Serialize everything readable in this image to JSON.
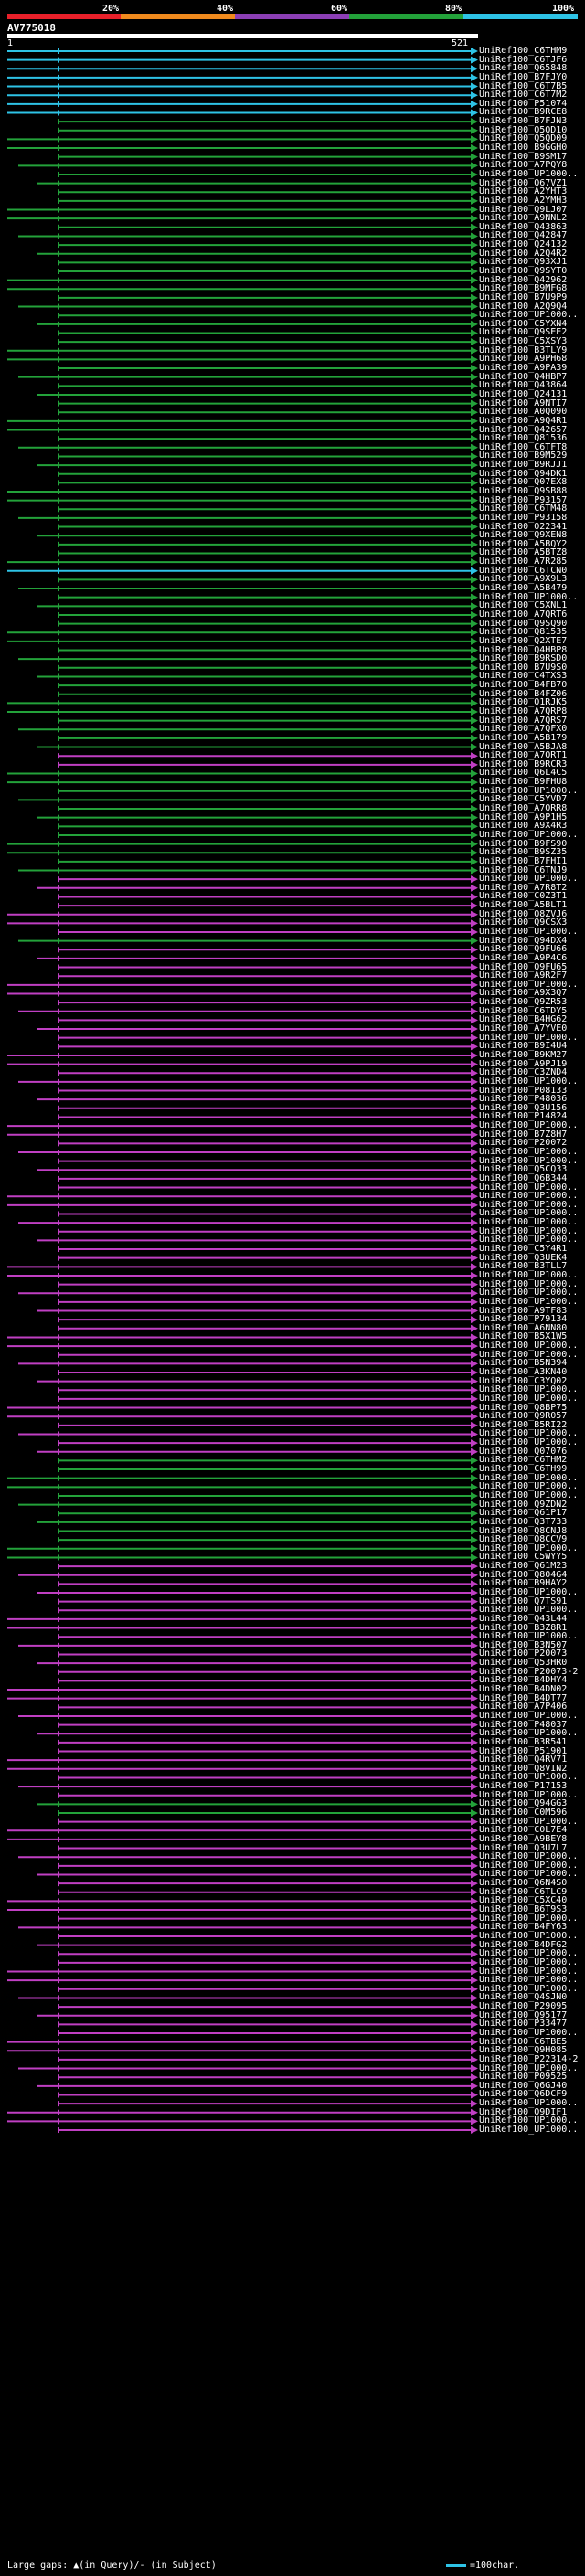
{
  "scale": {
    "ticks": [
      "20%",
      "40%",
      "60%",
      "80%",
      "100%"
    ],
    "colors": [
      "#e8202a",
      "#f08a1d",
      "#8c3fb5",
      "#23a23a",
      "#2ec3e6"
    ]
  },
  "query": {
    "name": "AV775018",
    "start": "1",
    "end": "521"
  },
  "legend": {
    "gaps": "Large gaps: ▲(in Query)/- (in Subject)",
    "scale": "=100char."
  },
  "colors": {
    "cyan": "#2ec3e6",
    "green": "#23a23a",
    "magenta": "#c03fc3"
  },
  "hits": [
    {
      "label": "UniRef100_C6THM9",
      "color": "cyan"
    },
    {
      "label": "UniRef100_C6TJF6",
      "color": "cyan"
    },
    {
      "label": "UniRef100_Q65848",
      "color": "cyan"
    },
    {
      "label": "UniRef100_B7FJY0",
      "color": "cyan"
    },
    {
      "label": "UniRef100_C6T7B5",
      "color": "cyan"
    },
    {
      "label": "UniRef100_C6T7M2",
      "color": "cyan"
    },
    {
      "label": "UniRef100_P51074",
      "color": "cyan"
    },
    {
      "label": "UniRef100_B9RCE8",
      "color": "cyan"
    },
    {
      "label": "UniRef100_B7FJN3",
      "color": "green"
    },
    {
      "label": "UniRef100_Q5QD10",
      "color": "green"
    },
    {
      "label": "UniRef100_Q5QD09",
      "color": "green"
    },
    {
      "label": "UniRef100_B9GGH0",
      "color": "green"
    },
    {
      "label": "UniRef100_B9SM17",
      "color": "green"
    },
    {
      "label": "UniRef100_A7PQY8",
      "color": "green"
    },
    {
      "label": "UniRef100_UP1000..",
      "color": "green"
    },
    {
      "label": "UniRef100_Q67VZ1",
      "color": "green"
    },
    {
      "label": "UniRef100_A2YHT3",
      "color": "green"
    },
    {
      "label": "UniRef100_A2YMH3",
      "color": "green"
    },
    {
      "label": "UniRef100_Q9LJ07",
      "color": "green"
    },
    {
      "label": "UniRef100_A9NNL2",
      "color": "green"
    },
    {
      "label": "UniRef100_Q43863",
      "color": "green"
    },
    {
      "label": "UniRef100_Q42847",
      "color": "green"
    },
    {
      "label": "UniRef100_Q24132",
      "color": "green"
    },
    {
      "label": "UniRef100_A2Q4R2",
      "color": "green"
    },
    {
      "label": "UniRef100_Q93XJ1",
      "color": "green"
    },
    {
      "label": "UniRef100_Q9SYT0",
      "color": "green"
    },
    {
      "label": "UniRef100_Q42962",
      "color": "green"
    },
    {
      "label": "UniRef100_B9MFG8",
      "color": "green"
    },
    {
      "label": "UniRef100_B7U9P9",
      "color": "green"
    },
    {
      "label": "UniRef100_A2Q9Q4",
      "color": "green"
    },
    {
      "label": "UniRef100_UP1000..",
      "color": "green"
    },
    {
      "label": "UniRef100_C5YXN4",
      "color": "green"
    },
    {
      "label": "UniRef100_Q9SEE2",
      "color": "green"
    },
    {
      "label": "UniRef100_C5XSY3",
      "color": "green"
    },
    {
      "label": "UniRef100_B3TLY9",
      "color": "green"
    },
    {
      "label": "UniRef100_A9PH68",
      "color": "green"
    },
    {
      "label": "UniRef100_A9PA39",
      "color": "green"
    },
    {
      "label": "UniRef100_Q4HBP7",
      "color": "green"
    },
    {
      "label": "UniRef100_Q43864",
      "color": "green"
    },
    {
      "label": "UniRef100_Q24131",
      "color": "green"
    },
    {
      "label": "UniRef100_A9NTI7",
      "color": "green"
    },
    {
      "label": "UniRef100_A0Q090",
      "color": "green"
    },
    {
      "label": "UniRef100_A9Q4R1",
      "color": "green"
    },
    {
      "label": "UniRef100_Q42657",
      "color": "green"
    },
    {
      "label": "UniRef100_Q81536",
      "color": "green"
    },
    {
      "label": "UniRef100_C6TFT8",
      "color": "green"
    },
    {
      "label": "UniRef100_B9M529",
      "color": "green"
    },
    {
      "label": "UniRef100_B9RJJ1",
      "color": "green"
    },
    {
      "label": "UniRef100_Q94DK1",
      "color": "green"
    },
    {
      "label": "UniRef100_Q07EX8",
      "color": "green"
    },
    {
      "label": "UniRef100_Q9SB88",
      "color": "green"
    },
    {
      "label": "UniRef100_P93157",
      "color": "green"
    },
    {
      "label": "UniRef100_C6TM48",
      "color": "green"
    },
    {
      "label": "UniRef100_P93158",
      "color": "green"
    },
    {
      "label": "UniRef100_O22341",
      "color": "green"
    },
    {
      "label": "UniRef100_Q9XEN8",
      "color": "green"
    },
    {
      "label": "UniRef100_A5BQY2",
      "color": "green"
    },
    {
      "label": "UniRef100_A5BTZ8",
      "color": "green"
    },
    {
      "label": "UniRef100_A7R285",
      "color": "green"
    },
    {
      "label": "UniRef100_C6TCN0",
      "color": "cyan"
    },
    {
      "label": "UniRef100_A9X9L3",
      "color": "green"
    },
    {
      "label": "UniRef100_A5B479",
      "color": "green"
    },
    {
      "label": "UniRef100_UP1000..",
      "color": "green"
    },
    {
      "label": "UniRef100_C5XNL1",
      "color": "green"
    },
    {
      "label": "UniRef100_A7QRT6",
      "color": "green"
    },
    {
      "label": "UniRef100_Q9SQ90",
      "color": "green"
    },
    {
      "label": "UniRef100_Q81535",
      "color": "green"
    },
    {
      "label": "UniRef100_Q2XTE7",
      "color": "green"
    },
    {
      "label": "UniRef100_Q4HBP8",
      "color": "green"
    },
    {
      "label": "UniRef100_B9RSD0",
      "color": "green"
    },
    {
      "label": "UniRef100_B7U9S0",
      "color": "green"
    },
    {
      "label": "UniRef100_C4TXS3",
      "color": "green"
    },
    {
      "label": "UniRef100_B4FB70",
      "color": "green"
    },
    {
      "label": "UniRef100_B4FZ06",
      "color": "green"
    },
    {
      "label": "UniRef100_Q1RJK5",
      "color": "green"
    },
    {
      "label": "UniRef100_A7QRP8",
      "color": "green"
    },
    {
      "label": "UniRef100_A7QRS7",
      "color": "green"
    },
    {
      "label": "UniRef100_A7QFX0",
      "color": "green"
    },
    {
      "label": "UniRef100_A5B179",
      "color": "green"
    },
    {
      "label": "UniRef100_A5BJA8",
      "color": "green"
    },
    {
      "label": "UniRef100_A7QRT1",
      "color": "magenta"
    },
    {
      "label": "UniRef100_B9RCR3",
      "color": "magenta"
    },
    {
      "label": "UniRef100_Q6L4C5",
      "color": "green"
    },
    {
      "label": "UniRef100_B9FHU8",
      "color": "green"
    },
    {
      "label": "UniRef100_UP1000..",
      "color": "green"
    },
    {
      "label": "UniRef100_C5YVD7",
      "color": "green"
    },
    {
      "label": "UniRef100_A7QRR8",
      "color": "green"
    },
    {
      "label": "UniRef100_A9P1H5",
      "color": "green"
    },
    {
      "label": "UniRef100_A9X4R3",
      "color": "green"
    },
    {
      "label": "UniRef100_UP1000..",
      "color": "green"
    },
    {
      "label": "UniRef100_B9FS90",
      "color": "green"
    },
    {
      "label": "UniRef100_B9SZ35",
      "color": "green"
    },
    {
      "label": "UniRef100_B7FHI1",
      "color": "green"
    },
    {
      "label": "UniRef100_C6TNJ9",
      "color": "green"
    },
    {
      "label": "UniRef100_UP1000..",
      "color": "magenta"
    },
    {
      "label": "UniRef100_A7R8T2",
      "color": "magenta"
    },
    {
      "label": "UniRef100_C0Z3T1",
      "color": "magenta"
    },
    {
      "label": "UniRef100_A5BLT1",
      "color": "magenta"
    },
    {
      "label": "UniRef100_Q8ZVJ6",
      "color": "magenta"
    },
    {
      "label": "UniRef100_Q9CSX3",
      "color": "magenta"
    },
    {
      "label": "UniRef100_UP1000..",
      "color": "magenta"
    },
    {
      "label": "UniRef100_Q94DX4",
      "color": "green"
    },
    {
      "label": "UniRef100_Q9FU66",
      "color": "magenta"
    },
    {
      "label": "UniRef100_A9P4C6",
      "color": "magenta"
    },
    {
      "label": "UniRef100_Q9FU65",
      "color": "magenta"
    },
    {
      "label": "UniRef100_A9R2F7",
      "color": "magenta"
    },
    {
      "label": "UniRef100_UP1000..",
      "color": "magenta"
    },
    {
      "label": "UniRef100_A9X3Q7",
      "color": "magenta"
    },
    {
      "label": "UniRef100_Q9ZR53",
      "color": "magenta"
    },
    {
      "label": "UniRef100_C6TDY5",
      "color": "magenta"
    },
    {
      "label": "UniRef100_B4HG62",
      "color": "magenta"
    },
    {
      "label": "UniRef100_A7YVE0",
      "color": "magenta"
    },
    {
      "label": "UniRef100_UP1000..",
      "color": "magenta"
    },
    {
      "label": "UniRef100_B9I4U4",
      "color": "magenta"
    },
    {
      "label": "UniRef100_B9KM27",
      "color": "magenta"
    },
    {
      "label": "UniRef100_A9PJ19",
      "color": "magenta"
    },
    {
      "label": "UniRef100_C3ZND4",
      "color": "magenta"
    },
    {
      "label": "UniRef100_UP1000..",
      "color": "magenta"
    },
    {
      "label": "UniRef100_P08133",
      "color": "magenta"
    },
    {
      "label": "UniRef100_P48036",
      "color": "magenta"
    },
    {
      "label": "UniRef100_Q3U156",
      "color": "magenta"
    },
    {
      "label": "UniRef100_P14824",
      "color": "magenta"
    },
    {
      "label": "UniRef100_UP1000..",
      "color": "magenta"
    },
    {
      "label": "UniRef100_B7Z8H7",
      "color": "magenta"
    },
    {
      "label": "UniRef100_P20072",
      "color": "magenta"
    },
    {
      "label": "UniRef100_UP1000..",
      "color": "magenta"
    },
    {
      "label": "UniRef100_UP1000..",
      "color": "magenta"
    },
    {
      "label": "UniRef100_Q5CQ33",
      "color": "magenta"
    },
    {
      "label": "UniRef100_Q6B344",
      "color": "magenta"
    },
    {
      "label": "UniRef100_UP1000..",
      "color": "magenta"
    },
    {
      "label": "UniRef100_UP1000..",
      "color": "magenta"
    },
    {
      "label": "UniRef100_UP1000..",
      "color": "magenta"
    },
    {
      "label": "UniRef100_UP1000..",
      "color": "magenta"
    },
    {
      "label": "UniRef100_UP1000..",
      "color": "magenta"
    },
    {
      "label": "UniRef100_UP1000..",
      "color": "magenta"
    },
    {
      "label": "UniRef100_UP1000..",
      "color": "magenta"
    },
    {
      "label": "UniRef100_C5Y4R1",
      "color": "magenta"
    },
    {
      "label": "UniRef100_Q3UEK4",
      "color": "magenta"
    },
    {
      "label": "UniRef100_B3TLL7",
      "color": "magenta"
    },
    {
      "label": "UniRef100_UP1000..",
      "color": "magenta"
    },
    {
      "label": "UniRef100_UP1000..",
      "color": "magenta"
    },
    {
      "label": "UniRef100_UP1000..",
      "color": "magenta"
    },
    {
      "label": "UniRef100_UP1000..",
      "color": "magenta"
    },
    {
      "label": "UniRef100_A9TF83",
      "color": "magenta"
    },
    {
      "label": "UniRef100_P79134",
      "color": "magenta"
    },
    {
      "label": "UniRef100_A6NN80",
      "color": "magenta"
    },
    {
      "label": "UniRef100_B5X1W5",
      "color": "magenta"
    },
    {
      "label": "UniRef100_UP1000..",
      "color": "magenta"
    },
    {
      "label": "UniRef100_UP1000..",
      "color": "magenta"
    },
    {
      "label": "UniRef100_B5N394",
      "color": "magenta"
    },
    {
      "label": "UniRef100_A3KN40",
      "color": "magenta"
    },
    {
      "label": "UniRef100_C3YQ02",
      "color": "magenta"
    },
    {
      "label": "UniRef100_UP1000..",
      "color": "magenta"
    },
    {
      "label": "UniRef100_UP1000..",
      "color": "magenta"
    },
    {
      "label": "UniRef100_Q8BP75",
      "color": "magenta"
    },
    {
      "label": "UniRef100_Q9R057",
      "color": "magenta"
    },
    {
      "label": "UniRef100_B5RI22",
      "color": "magenta"
    },
    {
      "label": "UniRef100_UP1000..",
      "color": "magenta"
    },
    {
      "label": "UniRef100_UP1000..",
      "color": "magenta"
    },
    {
      "label": "UniRef100_Q07076",
      "color": "magenta"
    },
    {
      "label": "UniRef100_C6THM2",
      "color": "green"
    },
    {
      "label": "UniRef100_C6TH99",
      "color": "green"
    },
    {
      "label": "UniRef100_UP1000..",
      "color": "green"
    },
    {
      "label": "UniRef100_UP1000..",
      "color": "green"
    },
    {
      "label": "UniRef100_UP1000..",
      "color": "green"
    },
    {
      "label": "UniRef100_Q9ZDN2",
      "color": "green"
    },
    {
      "label": "UniRef100_Q61P17",
      "color": "green"
    },
    {
      "label": "UniRef100_Q3T733",
      "color": "green"
    },
    {
      "label": "UniRef100_Q8CNJ8",
      "color": "green"
    },
    {
      "label": "UniRef100_Q8CCV9",
      "color": "green"
    },
    {
      "label": "UniRef100_UP1000..",
      "color": "green"
    },
    {
      "label": "UniRef100_C5WYY5",
      "color": "green"
    },
    {
      "label": "UniRef100_Q61M23",
      "color": "magenta"
    },
    {
      "label": "UniRef100_Q804G4",
      "color": "magenta"
    },
    {
      "label": "UniRef100_B9HAY2",
      "color": "magenta"
    },
    {
      "label": "UniRef100_UP1000..",
      "color": "magenta"
    },
    {
      "label": "UniRef100_Q7TS91",
      "color": "magenta"
    },
    {
      "label": "UniRef100_UP1000..",
      "color": "magenta"
    },
    {
      "label": "UniRef100_Q43L44",
      "color": "magenta"
    },
    {
      "label": "UniRef100_B3Z8R1",
      "color": "magenta"
    },
    {
      "label": "UniRef100_UP1000..",
      "color": "magenta"
    },
    {
      "label": "UniRef100_B3N507",
      "color": "magenta"
    },
    {
      "label": "UniRef100_P20073",
      "color": "magenta"
    },
    {
      "label": "UniRef100_Q53HR0",
      "color": "magenta"
    },
    {
      "label": "UniRef100_P20073-2",
      "color": "magenta"
    },
    {
      "label": "UniRef100_B4DHY4",
      "color": "magenta"
    },
    {
      "label": "UniRef100_B4DN02",
      "color": "magenta"
    },
    {
      "label": "UniRef100_B4DT77",
      "color": "magenta"
    },
    {
      "label": "UniRef100_A7P406",
      "color": "magenta"
    },
    {
      "label": "UniRef100_UP1000..",
      "color": "magenta"
    },
    {
      "label": "UniRef100_P48037",
      "color": "magenta"
    },
    {
      "label": "UniRef100_UP1000..",
      "color": "magenta"
    },
    {
      "label": "UniRef100_B3R541",
      "color": "magenta"
    },
    {
      "label": "UniRef100_P51901",
      "color": "magenta"
    },
    {
      "label": "UniRef100_Q4RV71",
      "color": "magenta"
    },
    {
      "label": "UniRef100_Q8VIN2",
      "color": "magenta"
    },
    {
      "label": "UniRef100_UP1000..",
      "color": "magenta"
    },
    {
      "label": "UniRef100_P17153",
      "color": "magenta"
    },
    {
      "label": "UniRef100_UP1000..",
      "color": "magenta"
    },
    {
      "label": "UniRef100_Q94GG3",
      "color": "green"
    },
    {
      "label": "UniRef100_C0M596",
      "color": "green"
    },
    {
      "label": "UniRef100_UP1000..",
      "color": "magenta"
    },
    {
      "label": "UniRef100_C0L7E4",
      "color": "magenta"
    },
    {
      "label": "UniRef100_A9BEY8",
      "color": "magenta"
    },
    {
      "label": "UniRef100_Q3U7L7",
      "color": "magenta"
    },
    {
      "label": "UniRef100_UP1000..",
      "color": "magenta"
    },
    {
      "label": "UniRef100_UP1000..",
      "color": "magenta"
    },
    {
      "label": "UniRef100_UP1000..",
      "color": "magenta"
    },
    {
      "label": "UniRef100_Q6N4S0",
      "color": "magenta"
    },
    {
      "label": "UniRef100_C6TLC9",
      "color": "magenta"
    },
    {
      "label": "UniRef100_C5XC40",
      "color": "magenta"
    },
    {
      "label": "UniRef100_B6T9S3",
      "color": "magenta"
    },
    {
      "label": "UniRef100_UP1000..",
      "color": "magenta"
    },
    {
      "label": "UniRef100_B4FY63",
      "color": "magenta"
    },
    {
      "label": "UniRef100_UP1000..",
      "color": "magenta"
    },
    {
      "label": "UniRef100_B4DFG2",
      "color": "magenta"
    },
    {
      "label": "UniRef100_UP1000..",
      "color": "magenta"
    },
    {
      "label": "UniRef100_UP1000..",
      "color": "magenta"
    },
    {
      "label": "UniRef100_UP1000..",
      "color": "magenta"
    },
    {
      "label": "UniRef100_UP1000..",
      "color": "magenta"
    },
    {
      "label": "UniRef100_UP1000..",
      "color": "magenta"
    },
    {
      "label": "UniRef100_Q4SJN0",
      "color": "magenta"
    },
    {
      "label": "UniRef100_P29095",
      "color": "magenta"
    },
    {
      "label": "UniRef100_Q95177",
      "color": "magenta"
    },
    {
      "label": "UniRef100_P33477",
      "color": "magenta"
    },
    {
      "label": "UniRef100_UP1000..",
      "color": "magenta"
    },
    {
      "label": "UniRef100_C6TBE5",
      "color": "magenta"
    },
    {
      "label": "UniRef100_Q9H085",
      "color": "magenta"
    },
    {
      "label": "UniRef100_P22314-2",
      "color": "magenta"
    },
    {
      "label": "UniRef100_UP1000..",
      "color": "magenta"
    },
    {
      "label": "UniRef100_P09525",
      "color": "magenta"
    },
    {
      "label": "UniRef100_Q6GJ40",
      "color": "magenta"
    },
    {
      "label": "UniRef100_Q6DCF9",
      "color": "magenta"
    },
    {
      "label": "UniRef100_UP1000..",
      "color": "magenta"
    },
    {
      "label": "UniRef100_Q9DIF1",
      "color": "magenta"
    },
    {
      "label": "UniRef100_UP1000..",
      "color": "magenta"
    },
    {
      "label": "UniRef100_UP1000..",
      "color": "magenta"
    }
  ]
}
